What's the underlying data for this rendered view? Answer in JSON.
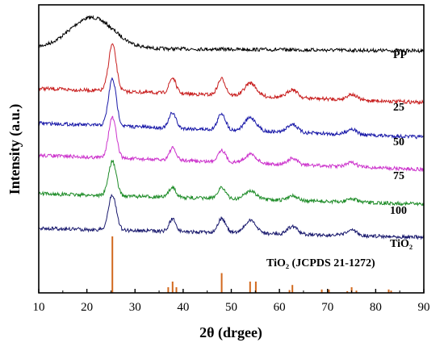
{
  "chart_data": {
    "type": "line",
    "xlabel": "2θ (drgee)",
    "ylabel": "Intensity (a.u.)",
    "xlim": [
      10,
      90
    ],
    "x_ticks": [
      10,
      20,
      30,
      40,
      50,
      60,
      70,
      80,
      90
    ],
    "y_ticks_shown": false,
    "grid": false,
    "legend": "none",
    "series": [
      {
        "name": "PP",
        "color": "#000000",
        "peaks": [
          {
            "x": 21,
            "height": 1.0,
            "width": 4.5
          }
        ],
        "baseline_start": 0.1,
        "baseline_end": 0.0
      },
      {
        "name": "25",
        "color": "#c81e1e",
        "peaks": [
          {
            "x": 25.3,
            "height": 1.0,
            "width": 0.8
          },
          {
            "x": 37.8,
            "height": 0.33,
            "width": 0.7
          },
          {
            "x": 48.0,
            "height": 0.35,
            "width": 0.8
          },
          {
            "x": 54.0,
            "height": 0.28,
            "width": 1.2
          },
          {
            "x": 62.7,
            "height": 0.18,
            "width": 1.0
          },
          {
            "x": 75.0,
            "height": 0.12,
            "width": 1.0
          }
        ],
        "baseline_start": 0.3,
        "baseline_end": 0.0
      },
      {
        "name": "50",
        "color": "#1818a8",
        "peaks": [
          {
            "x": 25.3,
            "height": 1.0,
            "width": 0.8
          },
          {
            "x": 37.8,
            "height": 0.33,
            "width": 0.7
          },
          {
            "x": 48.0,
            "height": 0.35,
            "width": 0.8
          },
          {
            "x": 54.0,
            "height": 0.28,
            "width": 1.2
          },
          {
            "x": 62.7,
            "height": 0.18,
            "width": 1.0
          },
          {
            "x": 75.0,
            "height": 0.12,
            "width": 1.0
          }
        ],
        "baseline_start": 0.3,
        "baseline_end": 0.0
      },
      {
        "name": "75",
        "color": "#cc33cc",
        "peaks": [
          {
            "x": 25.3,
            "height": 1.0,
            "width": 0.8
          },
          {
            "x": 37.8,
            "height": 0.3,
            "width": 0.7
          },
          {
            "x": 48.0,
            "height": 0.3,
            "width": 0.8
          },
          {
            "x": 54.0,
            "height": 0.22,
            "width": 1.2
          },
          {
            "x": 62.7,
            "height": 0.15,
            "width": 1.0
          },
          {
            "x": 75.0,
            "height": 0.1,
            "width": 1.0
          }
        ],
        "baseline_start": 0.35,
        "baseline_end": 0.0
      },
      {
        "name": "100",
        "color": "#1e8c28",
        "peaks": [
          {
            "x": 25.3,
            "height": 1.0,
            "width": 0.8
          },
          {
            "x": 37.8,
            "height": 0.3,
            "width": 0.7
          },
          {
            "x": 48.0,
            "height": 0.33,
            "width": 0.8
          },
          {
            "x": 54.0,
            "height": 0.25,
            "width": 1.2
          },
          {
            "x": 62.7,
            "height": 0.15,
            "width": 1.0
          },
          {
            "x": 75.0,
            "height": 0.1,
            "width": 1.0
          }
        ],
        "baseline_start": 0.3,
        "baseline_end": 0.0
      },
      {
        "name": "TiO₂",
        "color": "#1a1a6e",
        "peaks": [
          {
            "x": 25.3,
            "height": 1.0,
            "width": 0.8
          },
          {
            "x": 37.8,
            "height": 0.35,
            "width": 0.7
          },
          {
            "x": 48.0,
            "height": 0.4,
            "width": 0.8
          },
          {
            "x": 54.0,
            "height": 0.35,
            "width": 1.2
          },
          {
            "x": 62.7,
            "height": 0.22,
            "width": 1.0
          },
          {
            "x": 75.0,
            "height": 0.15,
            "width": 1.0
          }
        ],
        "baseline_start": 0.25,
        "baseline_end": 0.0
      }
    ],
    "reference": {
      "name": "TiO₂ (JCPDS 21-1272)",
      "color": "#d2691e",
      "lines": [
        {
          "x": 25.3,
          "intensity": 100
        },
        {
          "x": 36.9,
          "intensity": 10
        },
        {
          "x": 37.8,
          "intensity": 20
        },
        {
          "x": 38.6,
          "intensity": 10
        },
        {
          "x": 48.0,
          "intensity": 35
        },
        {
          "x": 53.9,
          "intensity": 20
        },
        {
          "x": 55.1,
          "intensity": 20
        },
        {
          "x": 62.1,
          "intensity": 5
        },
        {
          "x": 62.7,
          "intensity": 14
        },
        {
          "x": 68.8,
          "intensity": 6
        },
        {
          "x": 70.3,
          "intensity": 6
        },
        {
          "x": 74.1,
          "intensity": 3
        },
        {
          "x": 75.0,
          "intensity": 10
        },
        {
          "x": 76.0,
          "intensity": 4
        },
        {
          "x": 82.7,
          "intensity": 6
        },
        {
          "x": 83.2,
          "intensity": 4
        }
      ]
    }
  }
}
